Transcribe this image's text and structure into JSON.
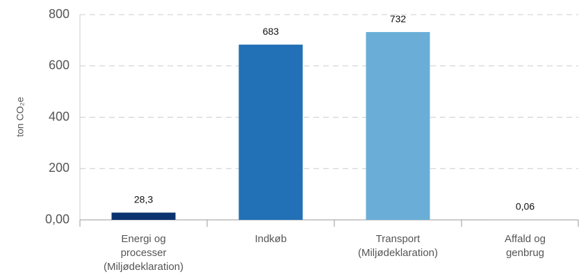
{
  "chart_data": {
    "type": "bar",
    "y_label": "ton CO₂e",
    "categories": [
      "Energi og\nprocesser\n(Miljødeklaration)",
      "Indkøb",
      "Transport\n(Miljødeklaration)",
      "Affald og\ngenbrug"
    ],
    "values": [
      28.3,
      683,
      732,
      0.06
    ],
    "value_labels": [
      "28,3",
      "683",
      "732",
      "0,06"
    ],
    "colors": [
      "#0b3370",
      "#2270b5",
      "#6aaed8",
      "#9ecae1"
    ],
    "ylim": [
      0,
      800
    ],
    "yticks": [
      {
        "value": 0,
        "label": "0,00"
      },
      200,
      400,
      600,
      800
    ],
    "grid": true
  }
}
